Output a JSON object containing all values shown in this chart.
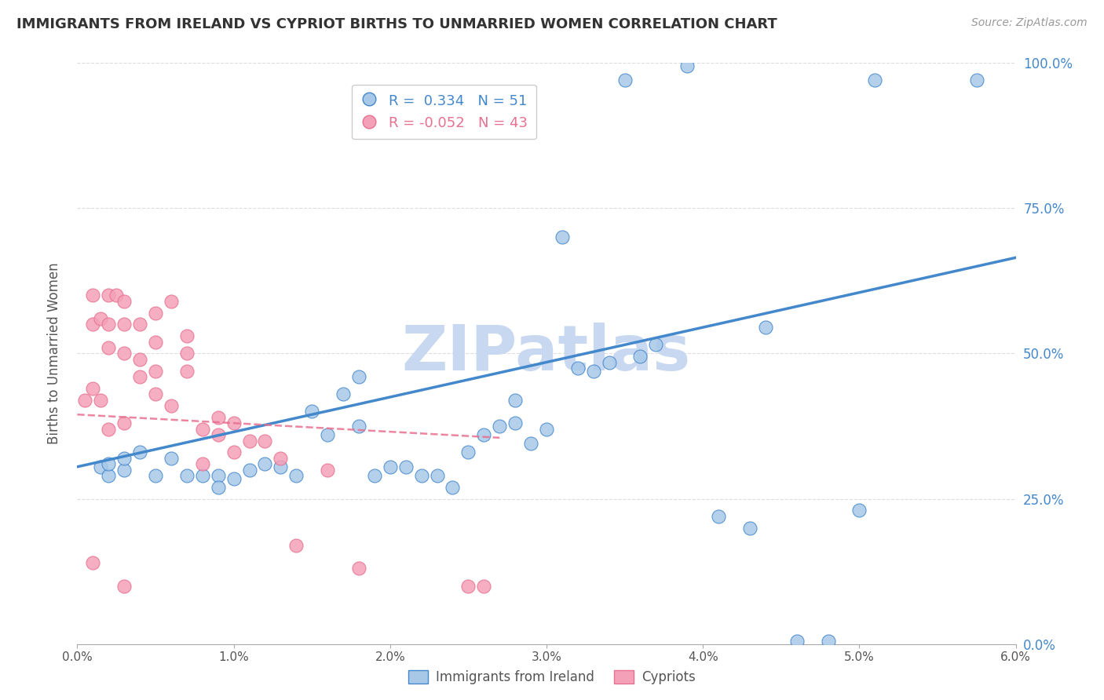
{
  "title": "IMMIGRANTS FROM IRELAND VS CYPRIOT BIRTHS TO UNMARRIED WOMEN CORRELATION CHART",
  "source": "Source: ZipAtlas.com",
  "ylabel_left": "Births to Unmarried Women",
  "legend_labels": [
    "Immigrants from Ireland",
    "Cypriots"
  ],
  "blue_R": 0.334,
  "blue_N": 51,
  "pink_R": -0.052,
  "pink_N": 43,
  "xmin": 0.0,
  "xmax": 0.06,
  "ymin": 0.0,
  "ymax": 1.0,
  "yticks": [
    0.0,
    0.25,
    0.5,
    0.75,
    1.0
  ],
  "ytick_labels": [
    "0.0%",
    "25.0%",
    "50.0%",
    "75.0%",
    "100.0%"
  ],
  "xticks": [
    0.0,
    0.01,
    0.02,
    0.03,
    0.04,
    0.05,
    0.06
  ],
  "xtick_labels": [
    "0.0%",
    "1.0%",
    "2.0%",
    "3.0%",
    "4.0%",
    "5.0%",
    "6.0%"
  ],
  "blue_color": "#a8c8e8",
  "pink_color": "#f4a0b8",
  "blue_line_color": "#4488cc",
  "pink_line_color": "#e87090",
  "watermark_color": "#c8d8f0",
  "background_color": "#ffffff",
  "grid_color": "#dddddd",
  "blue_dots_x": [
    0.0015,
    0.002,
    0.002,
    0.003,
    0.003,
    0.004,
    0.005,
    0.006,
    0.007,
    0.008,
    0.009,
    0.009,
    0.01,
    0.011,
    0.012,
    0.013,
    0.014,
    0.015,
    0.016,
    0.017,
    0.018,
    0.018,
    0.019,
    0.02,
    0.021,
    0.022,
    0.023,
    0.024,
    0.025,
    0.026,
    0.027,
    0.028,
    0.028,
    0.029,
    0.03,
    0.031,
    0.032,
    0.033,
    0.034,
    0.035,
    0.036,
    0.037,
    0.039,
    0.041,
    0.043,
    0.046,
    0.048,
    0.05,
    0.051,
    0.0575,
    0.044
  ],
  "blue_dots_y": [
    0.305,
    0.29,
    0.31,
    0.3,
    0.32,
    0.33,
    0.29,
    0.32,
    0.29,
    0.29,
    0.29,
    0.27,
    0.285,
    0.3,
    0.31,
    0.305,
    0.29,
    0.4,
    0.36,
    0.43,
    0.46,
    0.375,
    0.29,
    0.305,
    0.305,
    0.29,
    0.29,
    0.27,
    0.33,
    0.36,
    0.375,
    0.42,
    0.38,
    0.345,
    0.37,
    0.7,
    0.475,
    0.47,
    0.485,
    0.97,
    0.495,
    0.515,
    0.995,
    0.22,
    0.2,
    0.005,
    0.005,
    0.23,
    0.97,
    0.97,
    0.545
  ],
  "pink_dots_x": [
    0.0005,
    0.001,
    0.001,
    0.001,
    0.001,
    0.0015,
    0.0015,
    0.002,
    0.002,
    0.002,
    0.002,
    0.0025,
    0.003,
    0.003,
    0.003,
    0.003,
    0.003,
    0.004,
    0.004,
    0.004,
    0.005,
    0.005,
    0.005,
    0.005,
    0.006,
    0.006,
    0.007,
    0.007,
    0.007,
    0.008,
    0.008,
    0.009,
    0.009,
    0.01,
    0.01,
    0.011,
    0.012,
    0.013,
    0.014,
    0.016,
    0.018,
    0.025,
    0.026
  ],
  "pink_dots_y": [
    0.42,
    0.6,
    0.55,
    0.44,
    0.14,
    0.56,
    0.42,
    0.6,
    0.55,
    0.51,
    0.37,
    0.6,
    0.59,
    0.55,
    0.5,
    0.38,
    0.1,
    0.55,
    0.49,
    0.46,
    0.57,
    0.52,
    0.47,
    0.43,
    0.59,
    0.41,
    0.53,
    0.5,
    0.47,
    0.37,
    0.31,
    0.39,
    0.36,
    0.38,
    0.33,
    0.35,
    0.35,
    0.32,
    0.17,
    0.3,
    0.13,
    0.1,
    0.1
  ]
}
